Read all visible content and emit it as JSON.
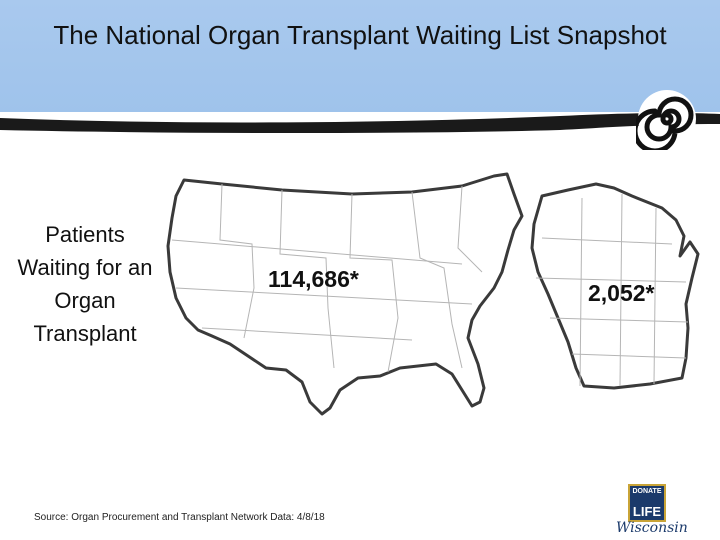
{
  "slide": {
    "title": "The National Organ Transplant Waiting List Snapshot",
    "side_label": "Patients Waiting for an Organ Transplant",
    "us_count": "114,686*",
    "wi_count": "2,052*",
    "source": "Source: Organ Procurement and Transplant Network Data: 4/8/18",
    "logo": {
      "top": "DONATE",
      "main": "LIFE",
      "script": "Wisconsin"
    }
  },
  "colors": {
    "header": "#a9c9ee",
    "band": "#1a1a1a",
    "map_fill": "#ffffff",
    "map_stroke": "#3a3a3a"
  },
  "icons": [
    "swirl-icon",
    "us-map-icon",
    "wisconsin-map-icon",
    "donate-life-logo"
  ]
}
